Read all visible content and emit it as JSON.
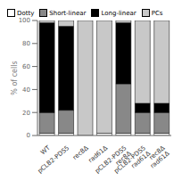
{
  "chart_data": {
    "type": "bar",
    "stacked": true,
    "grid": false,
    "legend": "upper left",
    "ylabel": "% of cells",
    "categories": [
      "WT",
      "pCLB2-PDS5",
      "rec8Δ",
      "rad61Δ",
      "pCLB2-PDS5\nrec8Δ",
      "pCLB2-PDS5\nrad61Δ",
      "rec8Δ\nrad61Δ"
    ],
    "series": [
      {
        "name": "Dotty",
        "color": "#ffffff",
        "values": [
          2,
          2,
          0,
          2,
          2,
          2,
          2
        ]
      },
      {
        "name": "Short-linear",
        "color": "#888888",
        "values": [
          18,
          20,
          0,
          0,
          43,
          18,
          18
        ]
      },
      {
        "name": "Long-linear",
        "color": "#000000",
        "values": [
          78,
          73,
          0,
          0,
          53,
          8,
          8
        ]
      },
      {
        "name": "PCs",
        "color": "#c8c8c8",
        "values": [
          2,
          5,
          100,
          98,
          2,
          72,
          72
        ]
      }
    ],
    "ylim": [
      0,
      100
    ],
    "yticks": [
      0,
      20,
      40,
      60,
      80,
      100
    ]
  }
}
